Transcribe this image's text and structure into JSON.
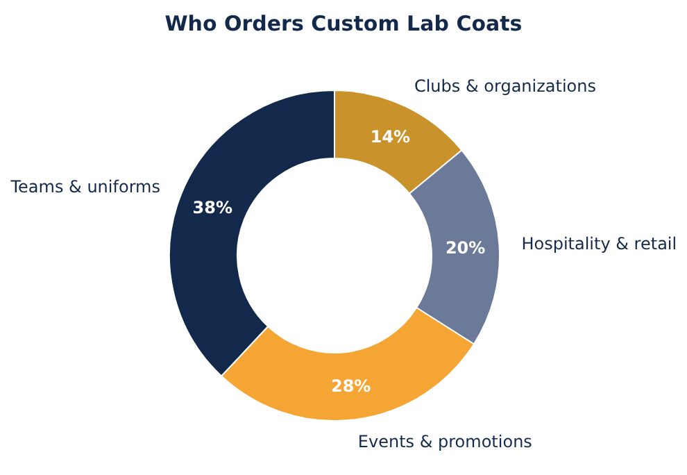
{
  "chart_data": {
    "type": "donut",
    "title": "Who Orders Custom Lab Coats",
    "categories": [
      "Clubs & organizations",
      "Hospitality & retail",
      "Events & promotions",
      "Teams & uniforms"
    ],
    "values": [
      14,
      20,
      28,
      38
    ],
    "colors": [
      "#c9922a",
      "#6b7a99",
      "#f5a533",
      "#13294b"
    ],
    "value_labels": [
      "14%",
      "20%",
      "28%",
      "38%"
    ]
  }
}
